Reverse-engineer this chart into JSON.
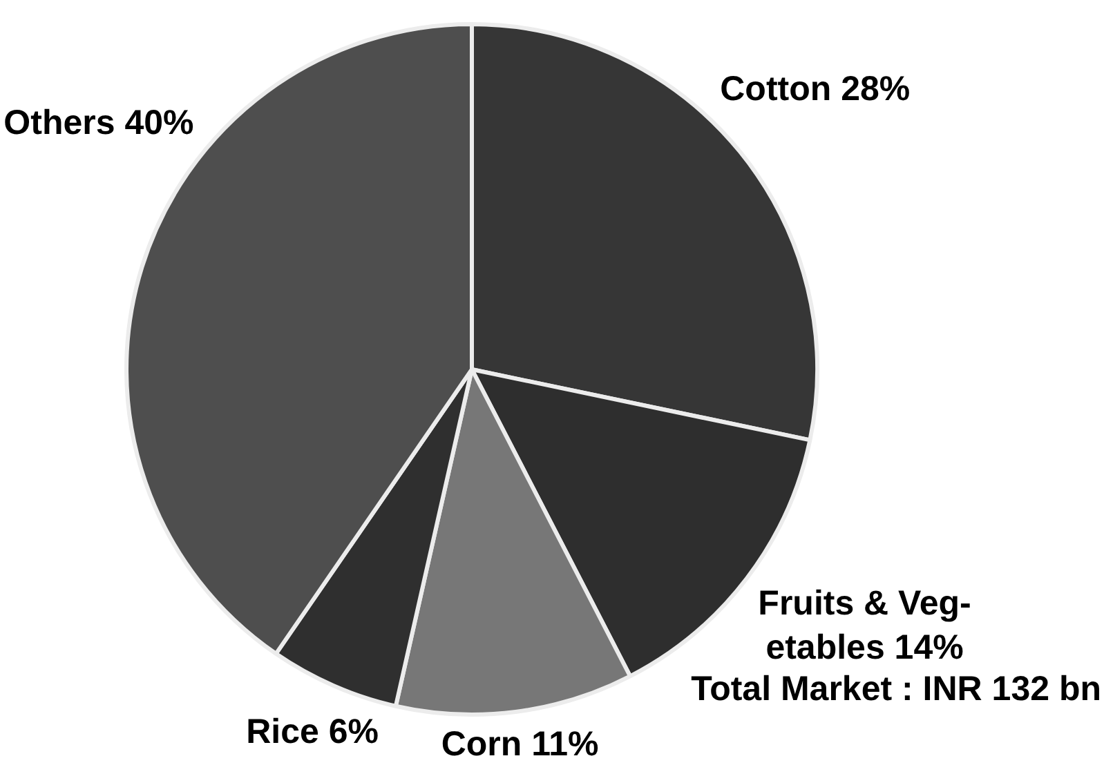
{
  "chart_data": {
    "type": "pie",
    "categories": [
      "Cotton",
      "Fruits & Veg-etables",
      "Corn",
      "Rice",
      "Others"
    ],
    "values": [
      28,
      14,
      11,
      6,
      40
    ],
    "colors": [
      "#363636",
      "#2e2e2e",
      "#777777",
      "#2f2f2f",
      "#4e4e4e"
    ],
    "value_labels": [
      "28%",
      "14%",
      "11%",
      "6%",
      "40%"
    ],
    "annotations": [
      "Total Market : INR 132 bn"
    ]
  }
}
